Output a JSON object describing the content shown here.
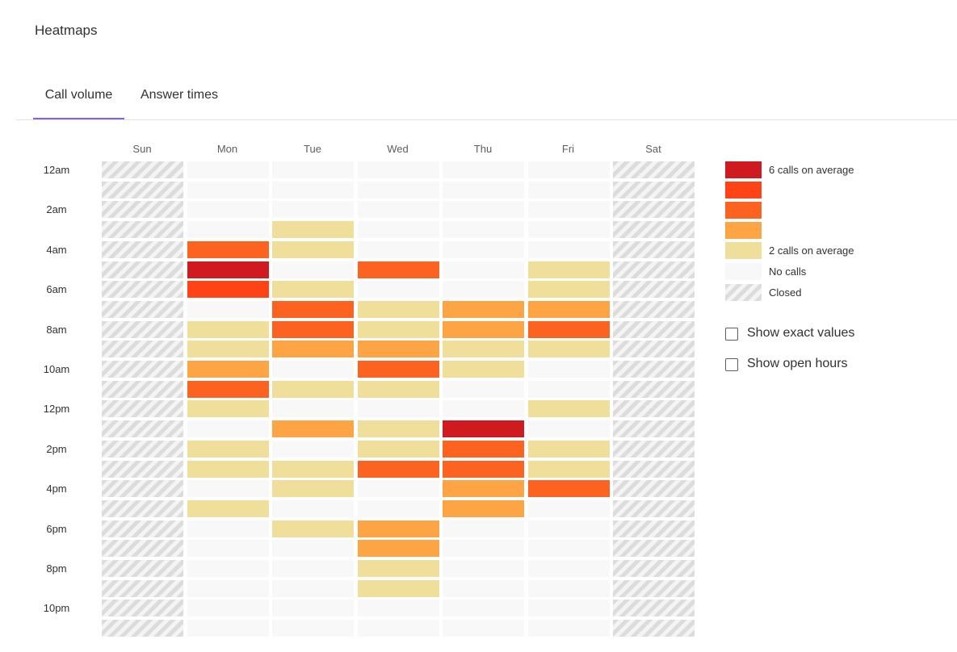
{
  "header": {
    "title": "Heatmaps"
  },
  "tabs": [
    {
      "label": "Call volume",
      "active": true
    },
    {
      "label": "Answer times",
      "active": false
    }
  ],
  "colors": {
    "level6": "#cf1b1f",
    "level5": "#fe4316",
    "level4": "#fd6320",
    "level3": "#fda444",
    "level2": "#efdf9a",
    "none": "#f8f8f8",
    "accent": "#8a63d2"
  },
  "heatmap": {
    "days": [
      "Sun",
      "Mon",
      "Tue",
      "Wed",
      "Thu",
      "Fri",
      "Sat"
    ],
    "hour_labels": [
      "12am",
      "2am",
      "4am",
      "6am",
      "8am",
      "10am",
      "12pm",
      "2pm",
      "4pm",
      "6pm",
      "8pm",
      "10pm"
    ],
    "closed_days": [
      "Sun",
      "Sat"
    ],
    "levels_by_day": {
      "Mon": [
        0,
        0,
        0,
        0,
        4,
        6,
        5,
        0,
        2,
        2,
        3,
        4,
        2,
        0,
        2,
        2,
        0,
        2,
        0,
        0,
        0,
        0,
        0,
        0
      ],
      "Tue": [
        0,
        0,
        0,
        2,
        2,
        0,
        2,
        4,
        4,
        3,
        0,
        2,
        0,
        3,
        0,
        2,
        2,
        0,
        2,
        0,
        0,
        0,
        0,
        0
      ],
      "Wed": [
        0,
        0,
        0,
        0,
        0,
        4,
        0,
        2,
        2,
        3,
        4,
        2,
        0,
        2,
        2,
        4,
        0,
        0,
        3,
        3,
        2,
        2,
        0,
        0
      ],
      "Thu": [
        0,
        0,
        0,
        0,
        0,
        0,
        0,
        3,
        3,
        2,
        2,
        0,
        0,
        6,
        4,
        4,
        3,
        3,
        0,
        0,
        0,
        0,
        0,
        0
      ],
      "Fri": [
        0,
        0,
        0,
        0,
        0,
        2,
        2,
        3,
        4,
        2,
        0,
        0,
        2,
        0,
        2,
        2,
        4,
        0,
        0,
        0,
        0,
        0,
        0,
        0
      ]
    }
  },
  "legend": {
    "items": [
      {
        "level": 6,
        "label": "6 calls on average"
      },
      {
        "level": 5,
        "label": ""
      },
      {
        "level": 4,
        "label": ""
      },
      {
        "level": 3,
        "label": ""
      },
      {
        "level": 2,
        "label": "2 calls on average"
      },
      {
        "level": 0,
        "label": "No calls"
      },
      {
        "level": -1,
        "label": "Closed"
      }
    ]
  },
  "options": {
    "show_exact_values": {
      "label": "Show exact values",
      "checked": false
    },
    "show_open_hours": {
      "label": "Show open hours",
      "checked": false
    }
  }
}
